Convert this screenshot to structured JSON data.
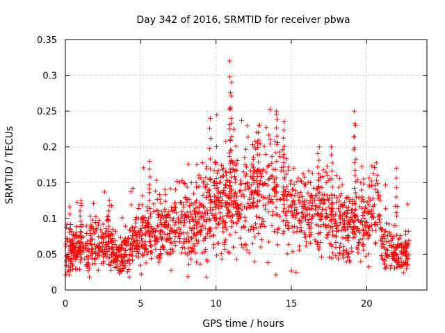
{
  "chart_data": {
    "type": "scatter",
    "title": "Day 342 of 2016, SRMTID for receiver pbwa",
    "xlabel": "GPS time / hours",
    "ylabel": "SRMTID / TECUs",
    "xlim": [
      0,
      24
    ],
    "ylim": [
      0,
      0.35
    ],
    "x_ticks": [
      "0",
      "5",
      "10",
      "15",
      "20"
    ],
    "x_tick_values": [
      0,
      5,
      10,
      15,
      20
    ],
    "y_ticks": [
      "0",
      "0.05",
      "0.1",
      "0.15",
      "0.2",
      "0.25",
      "0.3",
      "0.35"
    ],
    "y_tick_values": [
      0,
      0.05,
      0.1,
      0.15,
      0.2,
      0.25,
      0.3,
      0.35
    ],
    "grid": true,
    "marker": "plus",
    "color": "#ff0000",
    "time_range_hours": [
      0,
      22.8
    ],
    "trend": [
      {
        "x": 0,
        "y": 0.05
      },
      {
        "x": 1,
        "y": 0.06
      },
      {
        "x": 2,
        "y": 0.065
      },
      {
        "x": 3,
        "y": 0.06
      },
      {
        "x": 3.5,
        "y": 0.05
      },
      {
        "x": 4,
        "y": 0.055
      },
      {
        "x": 5,
        "y": 0.075
      },
      {
        "x": 6,
        "y": 0.085
      },
      {
        "x": 7,
        "y": 0.09
      },
      {
        "x": 8,
        "y": 0.095
      },
      {
        "x": 9,
        "y": 0.1
      },
      {
        "x": 10,
        "y": 0.12
      },
      {
        "x": 11,
        "y": 0.12
      },
      {
        "x": 12,
        "y": 0.13
      },
      {
        "x": 13,
        "y": 0.14
      },
      {
        "x": 14,
        "y": 0.145
      },
      {
        "x": 15,
        "y": 0.12
      },
      {
        "x": 16,
        "y": 0.1
      },
      {
        "x": 17,
        "y": 0.12
      },
      {
        "x": 18,
        "y": 0.09
      },
      {
        "x": 19,
        "y": 0.085
      },
      {
        "x": 20,
        "y": 0.1
      },
      {
        "x": 20.7,
        "y": 0.12
      },
      {
        "x": 21,
        "y": 0.065
      },
      {
        "x": 22,
        "y": 0.05
      },
      {
        "x": 22.8,
        "y": 0.05
      }
    ],
    "spikes": [
      {
        "x": 9.6,
        "y": 0.24
      },
      {
        "x": 10.9,
        "y": 0.32
      },
      {
        "x": 11.0,
        "y": 0.29
      },
      {
        "x": 10.95,
        "y": 0.255
      },
      {
        "x": 12.8,
        "y": 0.23
      },
      {
        "x": 14.0,
        "y": 0.25
      },
      {
        "x": 14.5,
        "y": 0.235
      },
      {
        "x": 17.7,
        "y": 0.2
      },
      {
        "x": 19.2,
        "y": 0.25
      },
      {
        "x": 19.25,
        "y": 0.23
      },
      {
        "x": 22.0,
        "y": 0.17
      },
      {
        "x": 5.6,
        "y": 0.18
      },
      {
        "x": 1.0,
        "y": 0.125
      },
      {
        "x": 2.9,
        "y": 0.125
      },
      {
        "x": 16.8,
        "y": 0.2
      }
    ]
  }
}
